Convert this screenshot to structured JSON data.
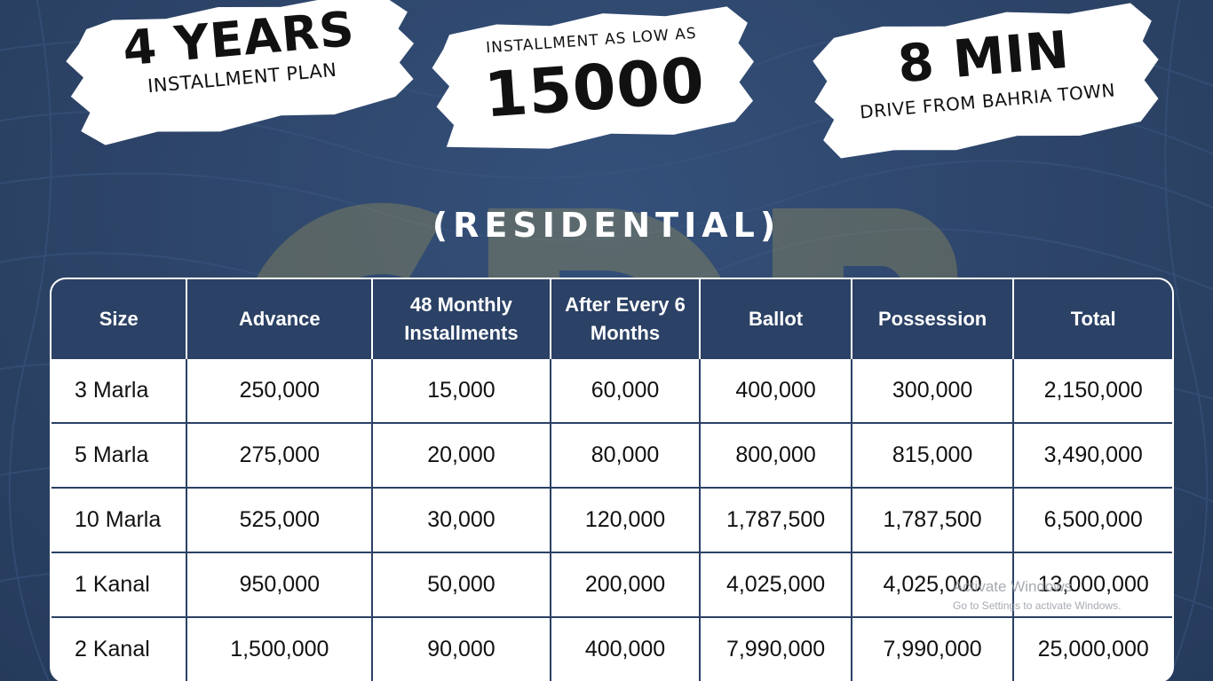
{
  "badges": [
    {
      "big": "4 YEARS",
      "small": "INSTALLMENT PLAN"
    },
    {
      "small": "INSTALLMENT AS LOW AS",
      "big": "15000"
    },
    {
      "big": "8 MIN",
      "small": "DRIVE FROM BAHRIA TOWN"
    }
  ],
  "watermark": "CDB",
  "heading": "(RESIDENTIAL)",
  "table": {
    "headers": [
      "Size",
      "Advance",
      "48 Monthly Installments",
      "After Every 6 Months",
      "Ballot",
      "Possession",
      "Total"
    ],
    "rows": [
      [
        "3 Marla",
        "250,000",
        "15,000",
        "60,000",
        "400,000",
        "300,000",
        "2,150,000"
      ],
      [
        "5 Marla",
        "275,000",
        "20,000",
        "80,000",
        "800,000",
        "815,000",
        "3,490,000"
      ],
      [
        "10 Marla",
        "525,000",
        "30,000",
        "120,000",
        "1,787,500",
        "1,787,500",
        "6,500,000"
      ],
      [
        "1 Kanal",
        "950,000",
        "50,000",
        "200,000",
        "4,025,000",
        "4,025,000",
        "13,000,000"
      ],
      [
        "2 Kanal",
        "1,500,000",
        "90,000",
        "400,000",
        "7,990,000",
        "7,990,000",
        "25,000,000"
      ]
    ]
  },
  "os_overlay": {
    "title": "Activate Windows",
    "subtitle": "Go to Settings to activate Windows."
  },
  "colors": {
    "background": "#2c4266",
    "header_bg": "#2b4165",
    "watermark": "#e8c84a"
  }
}
